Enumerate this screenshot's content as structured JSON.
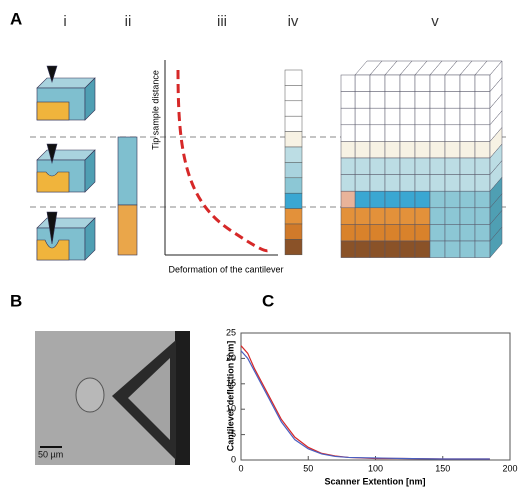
{
  "panel_labels": [
    "A",
    "B",
    "C"
  ],
  "panel_a": {
    "columns": [
      "i",
      "ii",
      "iii",
      "iv",
      "v"
    ],
    "y_axis_label": "Tip sample distance",
    "x_axis_label": "Deformation of the cantilever"
  },
  "panel_b": {
    "scale_bar": "50 µm"
  },
  "chart_data": {
    "type": "line",
    "xlabel": "Scanner Extention [nm]",
    "ylabel": "Cantilever deflection [nm]",
    "x": [
      0,
      5,
      10,
      20,
      30,
      40,
      50,
      60,
      70,
      80,
      100,
      120,
      150,
      185
    ],
    "series": [
      {
        "color": "#d62828",
        "values": [
          22.5,
          21,
          18,
          13,
          8,
          4.5,
          2.5,
          1.3,
          0.8,
          0.5,
          0.3,
          0.3,
          0.2,
          0.2
        ]
      },
      {
        "color": "#4a5fc1",
        "values": [
          21.5,
          20,
          17.5,
          12.5,
          7.5,
          4,
          2.2,
          1.2,
          0.7,
          0.5,
          0.4,
          0.3,
          0.2,
          0.2
        ]
      }
    ],
    "xlim": [
      0,
      200
    ],
    "ylim": [
      0,
      25
    ],
    "xticks": [
      0,
      50,
      100,
      150,
      200
    ],
    "yticks": [
      0,
      5,
      10,
      15,
      20,
      25
    ]
  }
}
